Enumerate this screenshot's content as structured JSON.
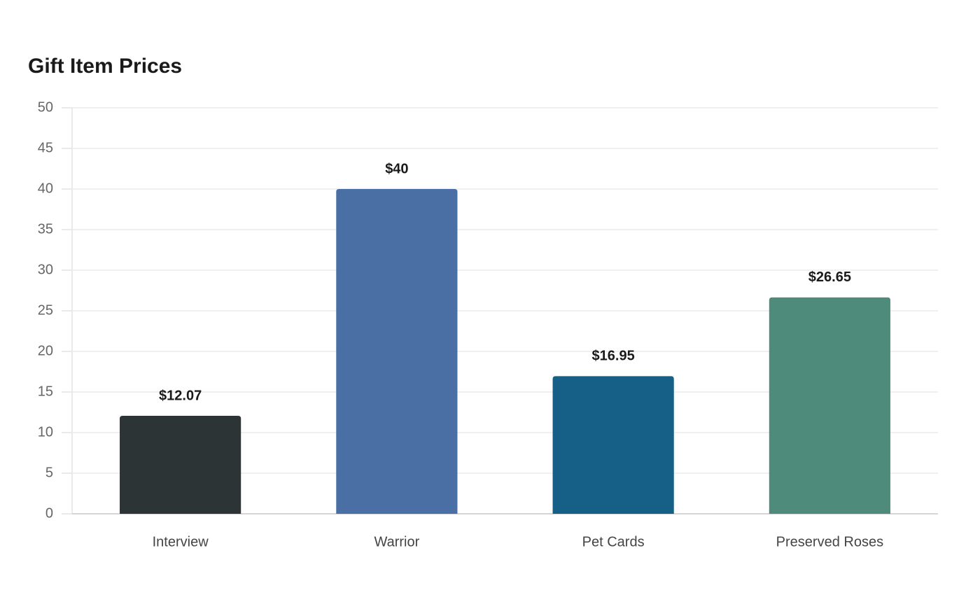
{
  "chart_data": {
    "type": "bar",
    "title": "Gift Item Prices",
    "categories": [
      "Interview",
      "Warrior",
      "Pet Cards",
      "Preserved Roses"
    ],
    "values": [
      12.07,
      40,
      16.95,
      26.65
    ],
    "value_labels": [
      "$12.07",
      "$40",
      "$16.95",
      "$26.65"
    ],
    "colors": [
      "#2d3436",
      "#4a6fa5",
      "#166088",
      "#4f8b7a"
    ],
    "ylim": [
      0,
      50
    ],
    "yticks": [
      0,
      5,
      10,
      15,
      20,
      25,
      30,
      35,
      40,
      45,
      50
    ],
    "grid": true
  }
}
